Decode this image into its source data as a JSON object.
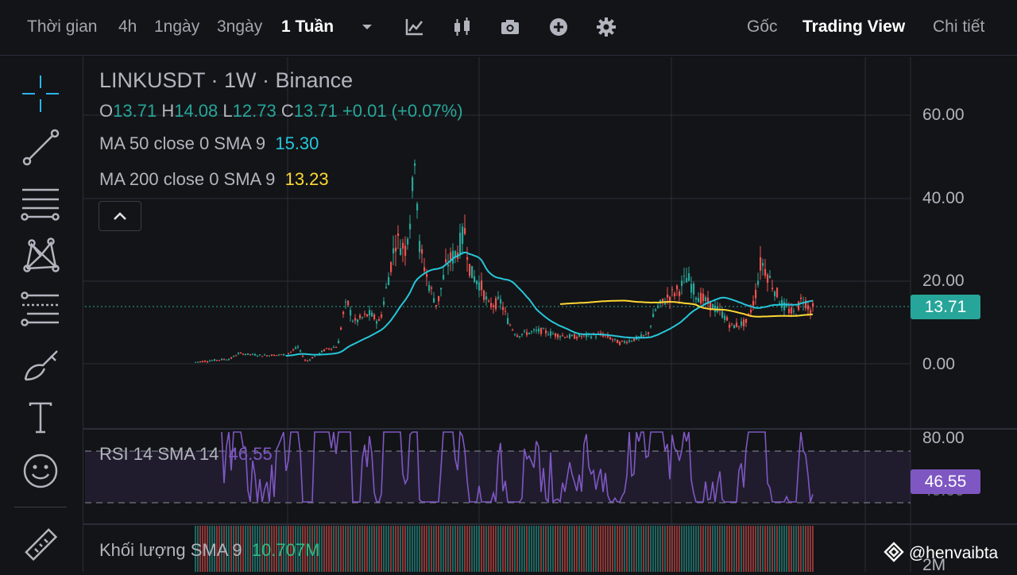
{
  "toolbar": {
    "timeframes": [
      "Thời gian",
      "4h",
      "1ngày",
      "3ngày",
      "1 Tuần"
    ],
    "active_timeframe": "1 Tuần",
    "icons": [
      "chevron-down-icon",
      "indicator-icon",
      "candlestick-type-icon",
      "camera-icon",
      "plus-circle-icon",
      "gear-icon"
    ],
    "views": [
      "Gốc",
      "Trading View",
      "Chi tiết"
    ],
    "active_view": "Trading View"
  },
  "drawing_tools": [
    "crosshair-icon",
    "trend-line-icon",
    "horizontal-lines-icon",
    "pattern-icon",
    "fib-retracement-icon",
    "brush-icon",
    "text-icon",
    "emoji-icon",
    "ruler-icon"
  ],
  "chart": {
    "symbol_line": "LINKUSDT · 1W · Binance",
    "ohlc": {
      "o_label": "O",
      "o": "13.71",
      "h_label": "H",
      "h": "14.08",
      "l_label": "L",
      "l": "12.73",
      "c_label": "C",
      "c": "13.71",
      "change": "+0.01 (+0.07%)"
    },
    "ma50": {
      "label": "MA 50 close 0 SMA 9",
      "value": "15.30",
      "color": "#26c6da"
    },
    "ma200": {
      "label": "MA 200 close 0 SMA 9",
      "value": "13.23",
      "color": "#fdd835"
    },
    "price_axis": [
      "60.00",
      "40.00",
      "20.00",
      "0.00"
    ],
    "last_price": "13.71",
    "up_color": "#26a69a",
    "down_color": "#ef5350"
  },
  "rsi": {
    "label": "RSI 14 SMA 14",
    "value": "46.55",
    "axis": [
      "80.00",
      "40.00"
    ],
    "color": "#7e57c2"
  },
  "volume": {
    "label": "Khối lượng SMA 9",
    "value": "10.707M",
    "axis_label": "2M"
  },
  "watermark": {
    "handle": "@henvaibta",
    "logo": "binance-square-logo-icon"
  }
}
